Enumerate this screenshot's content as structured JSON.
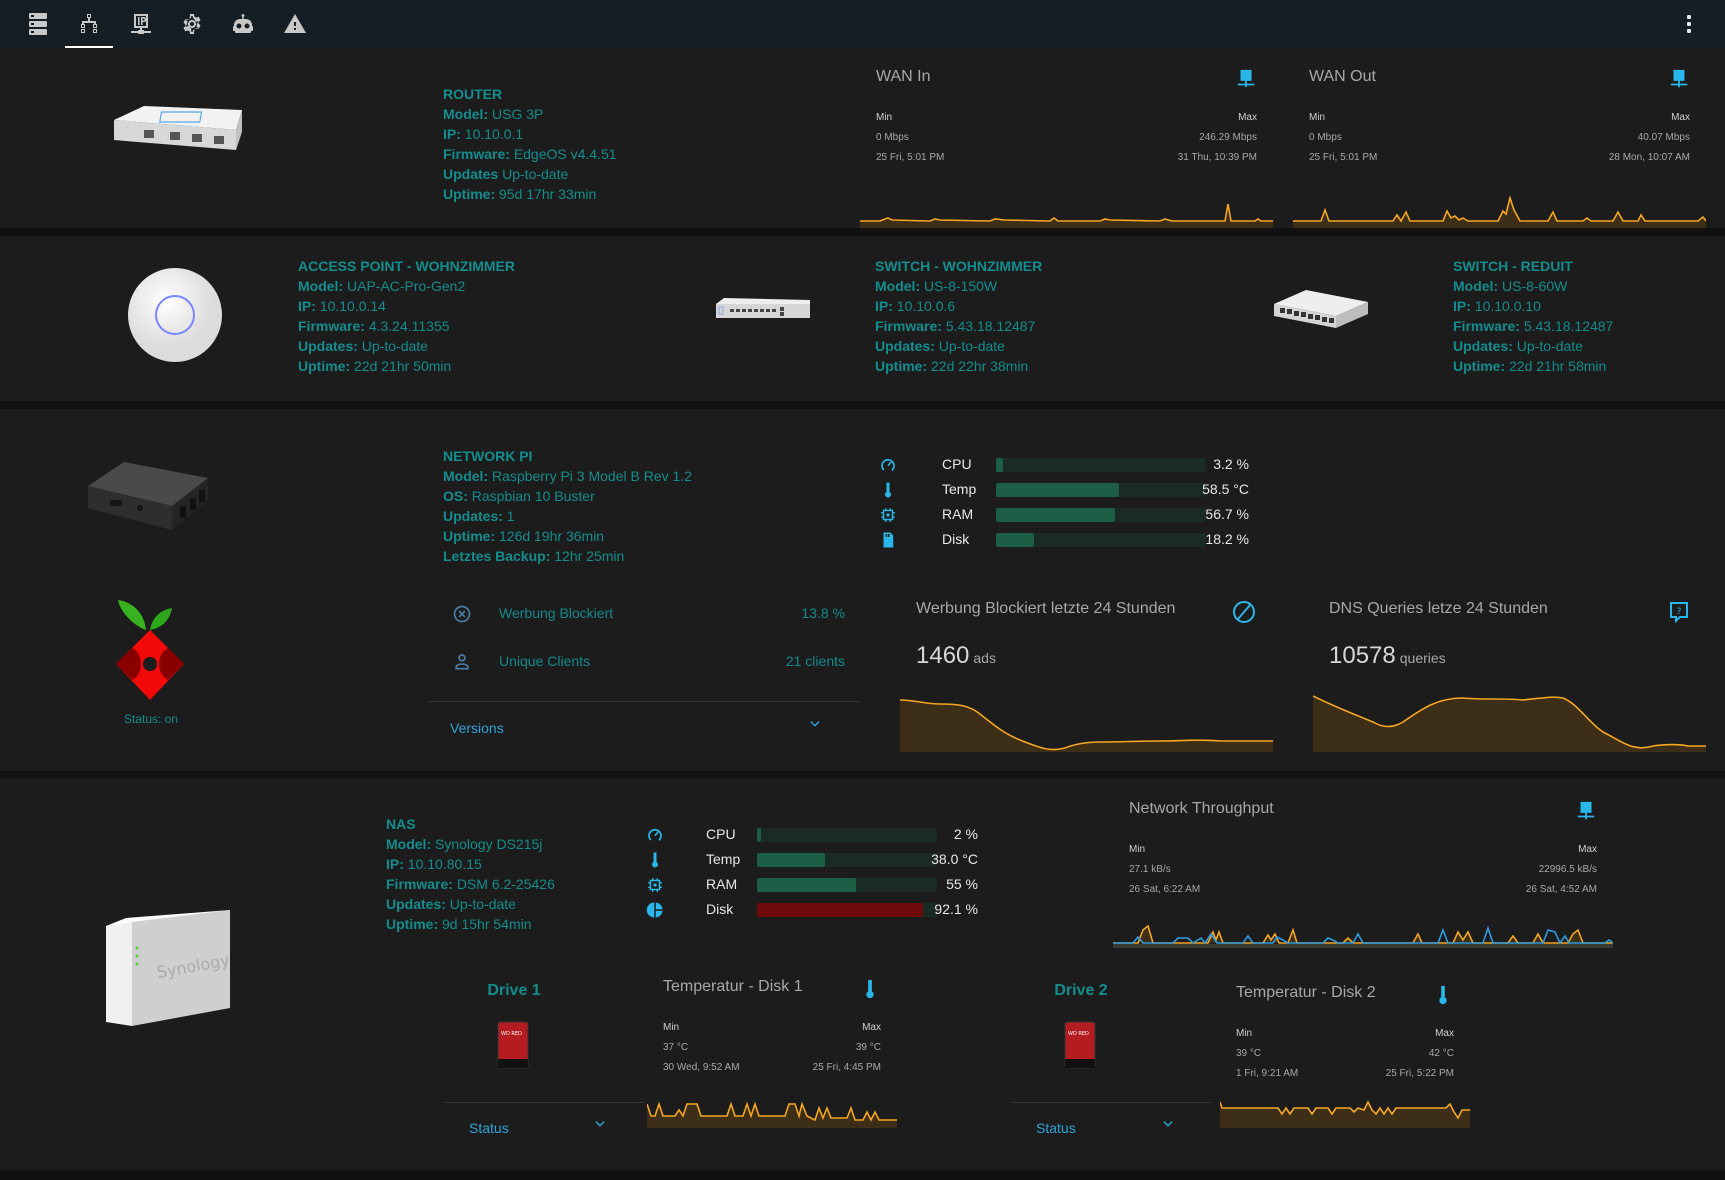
{
  "topbar": {
    "tabs": [
      {
        "icon": "server-icon",
        "label": "Server"
      },
      {
        "icon": "network-icon",
        "label": "Network",
        "active": true
      },
      {
        "icon": "ip-network-icon",
        "label": "IP"
      },
      {
        "icon": "gear-icon",
        "label": "Settings"
      },
      {
        "icon": "robot-icon",
        "label": "Automation"
      },
      {
        "icon": "alert-icon",
        "label": "Alerts"
      }
    ],
    "menu_icon": "more-vertical-icon"
  },
  "router": {
    "title": "ROUTER",
    "model_label": "Model:",
    "model": "USG 3P",
    "ip_label": "IP:",
    "ip": "10.10.0.1",
    "firmware_label": "Firmware:",
    "firmware": "EdgeOS v4.4.51",
    "updates_label": "Updates",
    "updates": "Up-to-date",
    "uptime_label": "Uptime:",
    "uptime": "95d 17hr 33min",
    "wan_in": {
      "title": "WAN In",
      "icon": "lan-icon",
      "min_label": "Min",
      "min_value": "0 Mbps",
      "min_time": "25 Fri, 5:01 PM",
      "max_label": "Max",
      "max_value": "246.29 Mbps",
      "max_time": "31 Thu, 10:39 PM"
    },
    "wan_out": {
      "title": "WAN Out",
      "icon": "lan-icon",
      "min_label": "Min",
      "min_value": "0 Mbps",
      "min_time": "25 Fri, 5:01 PM",
      "max_label": "Max",
      "max_value": "40.07 Mbps",
      "max_time": "28 Mon, 10:07 AM"
    }
  },
  "access_point": {
    "title": "ACCESS POINT - WOHNZIMMER",
    "model_label": "Model:",
    "model": "UAP-AC-Pro-Gen2",
    "ip_label": "IP:",
    "ip": "10.10.0.14",
    "firmware_label": "Firmware:",
    "firmware": "4.3.24.11355",
    "updates_label": "Updates:",
    "updates": "Up-to-date",
    "uptime_label": "Uptime:",
    "uptime": "22d 21hr 50min"
  },
  "switch_wohnzimmer": {
    "title": "SWITCH - WOHNZIMMER",
    "model_label": "Model:",
    "model": "US-8-150W",
    "ip_label": "IP:",
    "ip": "10.10.0.6",
    "firmware_label": "Firmware:",
    "firmware": "5.43.18.12487",
    "updates_label": "Updates:",
    "updates": "Up-to-date",
    "uptime_label": "Uptime:",
    "uptime": "22d 22hr 38min"
  },
  "switch_reduit": {
    "title": "SWITCH - REDUIT",
    "model_label": "Model:",
    "model": "US-8-60W",
    "ip_label": "IP:",
    "ip": "10.10.0.10",
    "firmware_label": "Firmware:",
    "firmware": "5.43.18.12487",
    "updates_label": "Updates:",
    "updates": "Up-to-date",
    "uptime_label": "Uptime:",
    "uptime": "22d 21hr 58min"
  },
  "network_pi": {
    "title": "NETWORK PI",
    "model_label": "Model:",
    "model": "Raspberry Pi 3 Model B Rev 1.2",
    "os_label": "OS:",
    "os": "Raspbian 10 Buster",
    "updates_label": "Updates:",
    "updates": "1",
    "uptime_label": "Uptime:",
    "uptime": "126d 19hr 36min",
    "backup_label": "Letztes Backup:",
    "backup": "12hr 25min",
    "stats": [
      {
        "icon": "speedometer-icon",
        "label": "CPU",
        "value": "3.2 %",
        "percent": 3.2
      },
      {
        "icon": "thermometer-icon",
        "label": "Temp",
        "value": "58.5 °C",
        "percent": 58.5
      },
      {
        "icon": "chip-icon",
        "label": "RAM",
        "value": "56.7 %",
        "percent": 56.7
      },
      {
        "icon": "sd-card-icon",
        "label": "Disk",
        "value": "18.2 %",
        "percent": 18.2
      }
    ]
  },
  "pihole": {
    "status": "Status: on",
    "list": [
      {
        "icon": "close-circle-icon",
        "label": "Werbung Blockiert",
        "value": "13.8 %"
      },
      {
        "icon": "account-icon",
        "label": "Unique Clients",
        "value": "21 clients"
      }
    ],
    "versions_label": "Versions",
    "ads_card": {
      "title": "Werbung Blockiert letzte 24 Stunden",
      "icon": "block-icon",
      "value": "1460",
      "unit": "ads"
    },
    "dns_card": {
      "title": "DNS Queries letze 24 Stunden",
      "icon": "comment-question-icon",
      "value": "10578",
      "unit": "queries"
    }
  },
  "nas": {
    "title": "NAS",
    "model_label": "Model:",
    "model": "Synology DS215j",
    "ip_label": "IP:",
    "ip": "10.10.80.15",
    "firmware_label": "Firmware:",
    "firmware": "DSM 6.2-25426",
    "updates_label": "Updates:",
    "updates": "Up-to-date",
    "uptime_label": "Uptime:",
    "uptime": "9d 15hr 54min",
    "stats": [
      {
        "icon": "speedometer-icon",
        "label": "CPU",
        "value": "2 %",
        "percent": 2
      },
      {
        "icon": "thermometer-icon",
        "label": "Temp",
        "value": "38.0 °C",
        "percent": 38
      },
      {
        "icon": "chip-icon",
        "label": "RAM",
        "value": "55 %",
        "percent": 55
      },
      {
        "icon": "pie-chart-icon",
        "label": "Disk",
        "value": "92.1 %",
        "percent": 92.1,
        "danger": true
      }
    ],
    "throughput": {
      "title": "Network Throughput",
      "icon": "lan-icon",
      "min_label": "Min",
      "min_value": "27.1 kB/s",
      "min_time": "26 Sat, 6:22 AM",
      "max_label": "Max",
      "max_value": "22996.5 kB/s",
      "max_time": "26 Sat, 4:52 AM"
    },
    "drives": [
      {
        "title": "Drive 1",
        "status_label": "Status",
        "temp": {
          "title": "Temperatur - Disk 1",
          "icon": "thermometer-icon",
          "min_label": "Min",
          "min_value": "37 °C",
          "min_time": "30 Wed, 9:52 AM",
          "max_label": "Max",
          "max_value": "39 °C",
          "max_time": "25 Fri, 4:45 PM"
        }
      },
      {
        "title": "Drive 2",
        "status_label": "Status",
        "temp": {
          "title": "Temperatur - Disk 2",
          "icon": "thermometer-icon",
          "min_label": "Min",
          "min_value": "39 °C",
          "min_time": "1 Fri, 9:21 AM",
          "max_label": "Max",
          "max_value": "42 °C",
          "max_time": "25 Fri, 5:22 PM"
        }
      }
    ]
  },
  "colors": {
    "accent_teal": "#138d8d",
    "accent_blue": "#2ea3d8",
    "chart_orange": "#f5a623",
    "chart_blue": "#2d9be0",
    "bar_green": "#1d5e47",
    "bar_red": "#6f0a0a"
  }
}
